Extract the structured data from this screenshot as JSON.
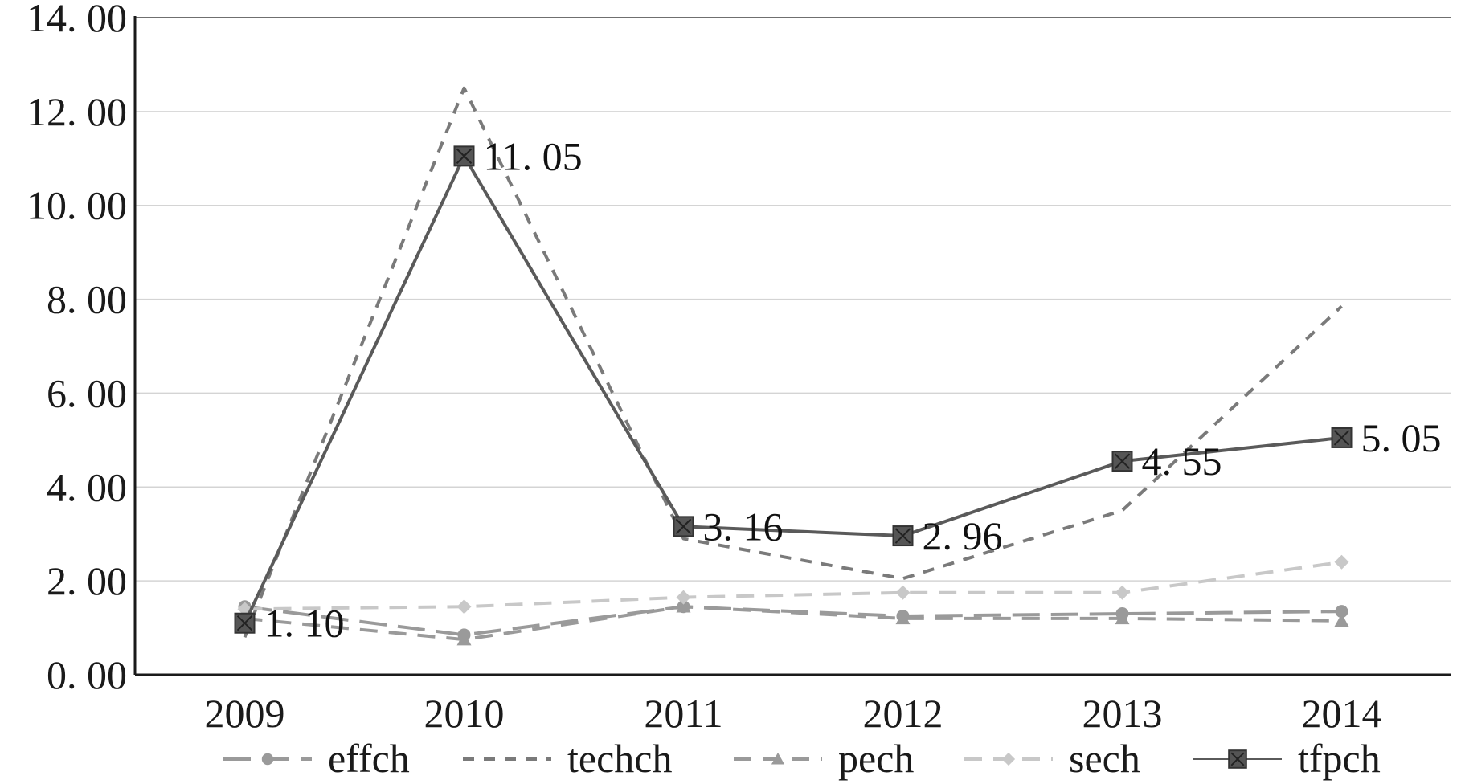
{
  "chart_data": {
    "type": "line",
    "title": "",
    "xlabel": "",
    "ylabel": "",
    "categories": [
      "2009",
      "2010",
      "2011",
      "2012",
      "2013",
      "2014"
    ],
    "ylim": [
      0,
      14
    ],
    "yticks": [
      0,
      2,
      4,
      6,
      8,
      10,
      12,
      14
    ],
    "ytick_labels": [
      "0. 00",
      "2. 00",
      "4. 00",
      "6. 00",
      "8. 00",
      "10. 00",
      "12. 00",
      "14. 00"
    ],
    "grid": "horizontal",
    "legend_position": "bottom",
    "series": [
      {
        "name": "effch",
        "values": [
          1.45,
          0.85,
          1.45,
          1.25,
          1.3,
          1.35
        ],
        "color": "#9a9a9a",
        "dash": "long-dash",
        "marker": "circle"
      },
      {
        "name": "techch",
        "values": [
          0.8,
          12.5,
          2.9,
          2.05,
          3.5,
          7.85
        ],
        "color": "#7a7a7a",
        "dash": "short-dash",
        "marker": "none"
      },
      {
        "name": "pech",
        "values": [
          1.2,
          0.75,
          1.45,
          1.2,
          1.2,
          1.15
        ],
        "color": "#9a9a9a",
        "dash": "dash",
        "marker": "triangle"
      },
      {
        "name": "sech",
        "values": [
          1.4,
          1.45,
          1.65,
          1.75,
          1.75,
          2.4
        ],
        "color": "#c8c8c8",
        "dash": "dash",
        "marker": "diamond"
      },
      {
        "name": "tfpch",
        "values": [
          1.1,
          11.05,
          3.16,
          2.96,
          4.55,
          5.05
        ],
        "color": "#5a5a5a",
        "dash": "solid",
        "marker": "square-x"
      }
    ],
    "data_labels": {
      "series": "tfpch",
      "labels": [
        "1. 10",
        "11. 05",
        "3. 16",
        "2. 96",
        "4. 55",
        "5. 05"
      ]
    }
  }
}
